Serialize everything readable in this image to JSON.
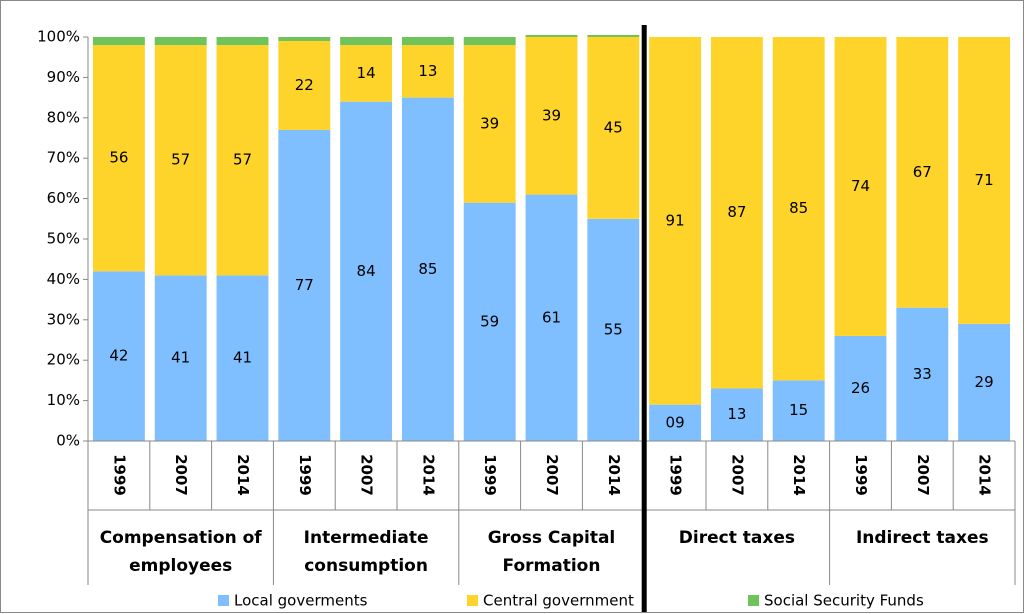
{
  "chart_data": {
    "type": "stacked_bar",
    "categories": [
      "1999",
      "2007",
      "2014",
      "1999",
      "2007",
      "2014",
      "1999",
      "2007",
      "2014",
      "1999",
      "2007",
      "2014",
      "1999",
      "2007",
      "2014"
    ],
    "groups": [
      "Compensation of employees",
      "Intermediate consumption",
      "Gross Capital Formation",
      "Direct taxes",
      "Indirect taxes"
    ],
    "series": [
      {
        "name": "Local goverments",
        "color": "#80bfff",
        "data_labels": true,
        "values": [
          42,
          41,
          41,
          77,
          84,
          85,
          59,
          61,
          55,
          9,
          13,
          15,
          26,
          33,
          29
        ],
        "value_labels": [
          "42",
          "41",
          "41",
          "77",
          "84",
          "85",
          "59",
          "61",
          "55",
          "09",
          "13",
          "15",
          "26",
          "33",
          "29"
        ]
      },
      {
        "name": "Central government",
        "color": "#ffd42a",
        "data_labels": true,
        "values": [
          56,
          57,
          57,
          22,
          14,
          13,
          39,
          39,
          45,
          91,
          87,
          85,
          74,
          67,
          71
        ]
      },
      {
        "name": "Social Security Funds",
        "color": "#6fc35b",
        "data_labels": false,
        "values": [
          2,
          2,
          2,
          1,
          2,
          2,
          2,
          0.5,
          0.5,
          0,
          0,
          0,
          0,
          0,
          0
        ]
      }
    ],
    "ylim": [
      0,
      100
    ],
    "yticks": [
      {
        "value": 0,
        "label": "0%"
      },
      {
        "value": 10,
        "label": "10%"
      },
      {
        "value": 20,
        "label": "20%"
      },
      {
        "value": 30,
        "label": "30%"
      },
      {
        "value": 40,
        "label": "40%"
      },
      {
        "value": 50,
        "label": "50%"
      },
      {
        "value": 60,
        "label": "60%"
      },
      {
        "value": 70,
        "label": "70%"
      },
      {
        "value": 80,
        "label": "80%"
      },
      {
        "value": 90,
        "label": "90%"
      },
      {
        "value": 100,
        "label": "100%"
      }
    ],
    "legend": "bottom"
  }
}
